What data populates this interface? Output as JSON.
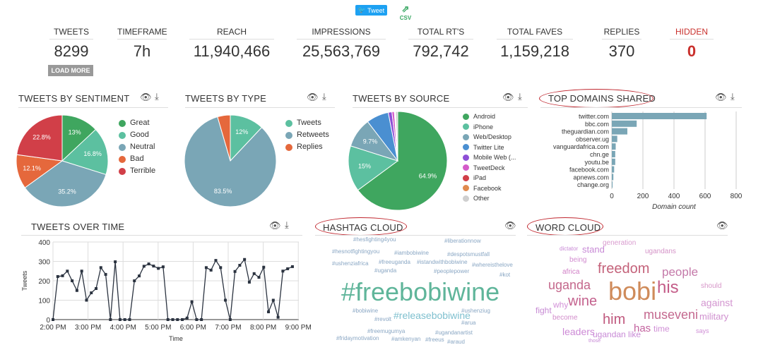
{
  "toolbar": {
    "tweet_label": "Tweet",
    "csv_label": "CSV"
  },
  "stats": [
    {
      "label": "TWEETS",
      "value": "8299"
    },
    {
      "label": "TIMEFRAME",
      "value": "7h"
    },
    {
      "label": "REACH",
      "value": "11,940,466"
    },
    {
      "label": "IMPRESSIONS",
      "value": "25,563,769"
    },
    {
      "label": "TOTAL RT'S",
      "value": "792,742"
    },
    {
      "label": "TOTAL FAVES",
      "value": "1,159,218"
    },
    {
      "label": "REPLIES",
      "value": "370"
    },
    {
      "label": "HIDDEN",
      "value": "0"
    }
  ],
  "load_more": "LOAD MORE",
  "colors": {
    "hidden": "#c9302c",
    "accent": "#1da1f2"
  },
  "panels": {
    "sentiment": "TWEETS BY SENTIMENT",
    "type": "TWEETS BY TYPE",
    "source": "TWEETS BY SOURCE",
    "domains": "TOP DOMAINS SHARED",
    "over_time": "TWEETS OVER TIME",
    "hashtag": "HASHTAG CLOUD",
    "word": "WORD CLOUD"
  },
  "chart_data": [
    {
      "id": "sentiment",
      "type": "pie",
      "title": "TWEETS BY SENTIMENT",
      "labels": [
        "Great",
        "Good",
        "Neutral",
        "Bad",
        "Terrible"
      ],
      "values": [
        13,
        16.8,
        35.2,
        12.1,
        22.8
      ],
      "data_labels": [
        "13%",
        "16.8%",
        "35.2%",
        "12.1%",
        "22.8%"
      ],
      "colors": [
        "#3fa65f",
        "#5cc0a0",
        "#7aa6b6",
        "#e5683c",
        "#d13f48"
      ]
    },
    {
      "id": "type",
      "type": "pie",
      "title": "TWEETS BY TYPE",
      "labels": [
        "Tweets",
        "Retweets",
        "Replies"
      ],
      "values": [
        12,
        83.5,
        4.5
      ],
      "data_labels": [
        "12%",
        "83.5%",
        ""
      ],
      "colors": [
        "#5cc0a0",
        "#7aa6b6",
        "#e5683c"
      ]
    },
    {
      "id": "source",
      "type": "pie",
      "title": "TWEETS BY SOURCE",
      "labels": [
        "Android",
        "iPhone",
        "Web/Desktop",
        "Twitter Lite",
        "Mobile Web (...",
        "TweetDeck",
        "iPad",
        "Facebook",
        "Other"
      ],
      "values": [
        64.9,
        15,
        9.7,
        7.3,
        1.2,
        0.8,
        0.2,
        0.2,
        0.7
      ],
      "data_labels": [
        "64.9%",
        "15%",
        "9.7%",
        "",
        "",
        "",
        "",
        "",
        ""
      ],
      "colors": [
        "#3fa65f",
        "#5cc0a0",
        "#7aa6b6",
        "#4a8fd1",
        "#8e4fd6",
        "#d45bc9",
        "#d13f48",
        "#e08a4e",
        "#cfcfcf"
      ]
    },
    {
      "id": "domains",
      "type": "bar",
      "title": "TOP DOMAINS SHARED",
      "categories": [
        "twitter.com",
        "bbc.com",
        "theguardian.com",
        "observer.ug",
        "vanguardafrica.com",
        "chn.ge",
        "youtu.be",
        "facebook.com",
        "apnews.com",
        "change.org"
      ],
      "values": [
        610,
        160,
        100,
        35,
        25,
        22,
        22,
        15,
        10,
        5
      ],
      "xlabel": "Domain count",
      "xlim": [
        0,
        800
      ],
      "xticks": [
        "0",
        "200",
        "400",
        "600",
        "800"
      ],
      "color": "#7aa6b6"
    },
    {
      "id": "over_time",
      "type": "line",
      "title": "TWEETS OVER TIME",
      "xlabel": "Time",
      "ylabel": "Tweets",
      "ylim": [
        0,
        400
      ],
      "yticks": [
        "0",
        "100",
        "200",
        "300",
        "400"
      ],
      "xticks": [
        "2:00 PM",
        "3:00 PM",
        "4:00 PM",
        "5:00 PM",
        "6:00 PM",
        "7:00 PM",
        "8:00 PM",
        "9:00 PM"
      ],
      "start": "2:00 PM",
      "interval_minutes": 8.2,
      "values": [
        0,
        222,
        226,
        250,
        200,
        150,
        250,
        100,
        138,
        160,
        268,
        233,
        0,
        298,
        0,
        0,
        0,
        200,
        225,
        275,
        287,
        276,
        264,
        272,
        0,
        0,
        0,
        0,
        8,
        92,
        0,
        0,
        268,
        255,
        305,
        268,
        100,
        0,
        248,
        280,
        310,
        193,
        237,
        218,
        270,
        40,
        100,
        12,
        250,
        262,
        273
      ]
    }
  ],
  "hashtags": [
    "#hesfighting4you",
    "#liberationnow",
    "#hesnotfightingyou",
    "#iambobiwine",
    "#despotsmustfall",
    "#ushenziafrica",
    "#freeuganda",
    "#istandwithbobiwine",
    "#whereisthelove",
    "#uganda",
    "#peoplepower",
    "#kot",
    "#freebobiwine",
    "#bobiwine",
    "#releasebobiwine",
    "#ushenziug",
    "#revolt",
    "#arua",
    "#freemugumya",
    "#ugandanartist",
    "#fridaymotivation",
    "#amkenyan",
    "#freeus",
    "#araud"
  ],
  "words": [
    "generation",
    "dictator",
    "stand",
    "ugandans",
    "being",
    "freedom",
    "people",
    "africa",
    "uganda",
    "bobi",
    "his",
    "should",
    "why",
    "wine",
    "against",
    "fight",
    "become",
    "him",
    "museveni",
    "military",
    "has",
    "time",
    "leaders",
    "ugandan like",
    "says",
    "those"
  ]
}
